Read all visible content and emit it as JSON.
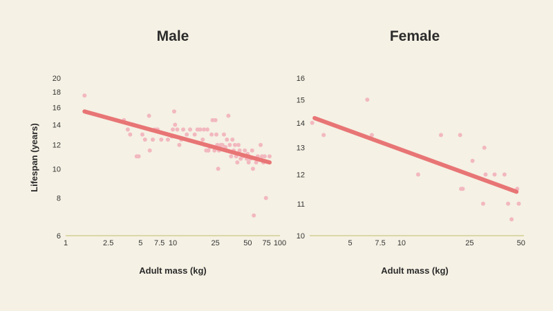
{
  "colors": {
    "background": "#f5f1e4",
    "point": "#f2b8bf",
    "trend": "#e87575",
    "baseline": "#d9d7a6"
  },
  "chart_data": [
    {
      "type": "scatter",
      "title": "Male",
      "xlabel": "Adult mass (kg)",
      "ylabel": "Lifespan (years)",
      "xscale": "log",
      "yscale": "log",
      "xlim": [
        1,
        100
      ],
      "ylim": [
        6,
        20
      ],
      "xticks": [
        1,
        2.5,
        5,
        7.5,
        10,
        25,
        50,
        75,
        100
      ],
      "xtick_labels": [
        "1",
        "2.5",
        "5",
        "7.5",
        "10",
        "25",
        "50",
        "75",
        "100"
      ],
      "yticks": [
        6,
        8,
        10,
        12,
        14,
        16,
        18,
        20
      ],
      "ytick_labels": [
        "6",
        "8",
        "10",
        "12",
        "14",
        "16",
        "18",
        "20"
      ],
      "grid": false,
      "points": [
        [
          1.5,
          17.5
        ],
        [
          3.5,
          14.5
        ],
        [
          3.8,
          13.5
        ],
        [
          4.0,
          13.0
        ],
        [
          4.3,
          14.0
        ],
        [
          4.6,
          11.0
        ],
        [
          4.8,
          11.0
        ],
        [
          5.2,
          13.0
        ],
        [
          5.5,
          12.5
        ],
        [
          6.0,
          15.0
        ],
        [
          6.1,
          11.5
        ],
        [
          6.5,
          12.5
        ],
        [
          6.8,
          13.5
        ],
        [
          7.2,
          13.5
        ],
        [
          7.8,
          12.5
        ],
        [
          9.0,
          12.5
        ],
        [
          9.8,
          12.8
        ],
        [
          10.0,
          13.5
        ],
        [
          10.3,
          15.5
        ],
        [
          10.5,
          14.0
        ],
        [
          11.0,
          13.5
        ],
        [
          11.5,
          12.0
        ],
        [
          12.0,
          12.5
        ],
        [
          12.5,
          13.5
        ],
        [
          13.5,
          13.0
        ],
        [
          14.5,
          13.5
        ],
        [
          16.0,
          13.0
        ],
        [
          17.0,
          13.5
        ],
        [
          18.0,
          13.5
        ],
        [
          19.0,
          12.5
        ],
        [
          19.5,
          13.5
        ],
        [
          20.0,
          12.0
        ],
        [
          20.5,
          11.5
        ],
        [
          21.0,
          13.5
        ],
        [
          21.5,
          11.5
        ],
        [
          22.0,
          11.8
        ],
        [
          23.0,
          13.0
        ],
        [
          23.5,
          14.5
        ],
        [
          24.5,
          11.5
        ],
        [
          25.0,
          14.5
        ],
        [
          25.5,
          13.0
        ],
        [
          26.0,
          12.0
        ],
        [
          26.5,
          10.0
        ],
        [
          27.0,
          11.5
        ],
        [
          28.0,
          12.0
        ],
        [
          29.0,
          12.0
        ],
        [
          30.0,
          13.0
        ],
        [
          31.0,
          11.8
        ],
        [
          32.0,
          12.5
        ],
        [
          33.0,
          15.0
        ],
        [
          34.0,
          12.0
        ],
        [
          35.0,
          11.0
        ],
        [
          36.0,
          12.5
        ],
        [
          37.0,
          11.5
        ],
        [
          38.0,
          12.0
        ],
        [
          39.0,
          11.0
        ],
        [
          40.0,
          10.5
        ],
        [
          41.0,
          12.0
        ],
        [
          42.0,
          11.5
        ],
        [
          43.0,
          10.8
        ],
        [
          45.0,
          11.0
        ],
        [
          47.0,
          11.5
        ],
        [
          49.0,
          10.8
        ],
        [
          50.0,
          11.2
        ],
        [
          51.0,
          10.5
        ],
        [
          53.0,
          10.8
        ],
        [
          55.0,
          11.5
        ],
        [
          56.0,
          10.0
        ],
        [
          57.0,
          7.0
        ],
        [
          60.0,
          10.5
        ],
        [
          62.0,
          11.0
        ],
        [
          66.0,
          12.0
        ],
        [
          68.0,
          11.0
        ],
        [
          70.0,
          10.5
        ],
        [
          72.0,
          11.0
        ],
        [
          74.0,
          8.0
        ],
        [
          80.0,
          11.0
        ]
      ],
      "trend": [
        [
          1.5,
          15.5
        ],
        [
          80,
          10.5
        ]
      ]
    },
    {
      "type": "scatter",
      "title": "Female",
      "xlabel": "Adult mass (kg)",
      "ylabel": "",
      "xscale": "log",
      "yscale": "log",
      "xlim": [
        2.9,
        52
      ],
      "ylim": [
        10,
        16
      ],
      "xticks": [
        5,
        7.5,
        10,
        25,
        50
      ],
      "xtick_labels": [
        "5",
        "7.5",
        "10",
        "25",
        "50"
      ],
      "yticks": [
        10,
        11,
        12,
        13,
        14,
        15,
        16
      ],
      "ytick_labels": [
        "10",
        "11",
        "12",
        "13",
        "14",
        "15",
        "16"
      ],
      "grid": false,
      "points": [
        [
          3.0,
          14.0
        ],
        [
          3.5,
          13.5
        ],
        [
          6.3,
          15.0
        ],
        [
          6.7,
          13.5
        ],
        [
          12.5,
          12.0
        ],
        [
          17.0,
          13.5
        ],
        [
          22.0,
          13.5
        ],
        [
          22.3,
          11.5
        ],
        [
          22.8,
          11.5
        ],
        [
          26.0,
          12.5
        ],
        [
          30.0,
          11.0
        ],
        [
          30.5,
          13.0
        ],
        [
          31.0,
          12.0
        ],
        [
          35.0,
          12.0
        ],
        [
          40.0,
          12.0
        ],
        [
          42.0,
          11.0
        ],
        [
          44.0,
          10.5
        ],
        [
          47.5,
          11.5
        ],
        [
          48.5,
          11.0
        ]
      ],
      "trend": [
        [
          3.1,
          14.2
        ],
        [
          47,
          11.4
        ]
      ]
    }
  ]
}
